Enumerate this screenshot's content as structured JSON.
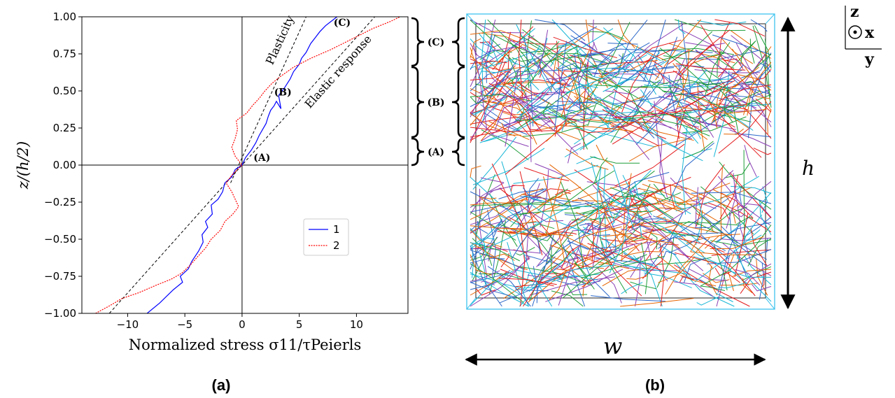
{
  "chart_data": {
    "type": "line",
    "xlabel": "Normalized stress σ11/τPeierls",
    "ylabel": "z/(h/2)",
    "xlim": [
      -14,
      14.5
    ],
    "ylim": [
      -1.0,
      1.0
    ],
    "xticks": [
      "−10",
      "−5",
      "0",
      "5",
      "10"
    ],
    "xtick_values": [
      -10,
      -5,
      0,
      5,
      10
    ],
    "yticks": [
      "−1.00",
      "−0.75",
      "−0.50",
      "−0.25",
      "0.00",
      "0.25",
      "0.50",
      "0.75",
      "1.00"
    ],
    "ytick_values": [
      -1.0,
      -0.75,
      -0.5,
      -0.25,
      0.0,
      0.25,
      0.5,
      0.75,
      1.0
    ],
    "legend_position": "center-right",
    "series": [
      {
        "name": "1",
        "color": "#0000ff",
        "style": "solid",
        "points": [
          [
            -8.3,
            -1.0
          ],
          [
            -7.2,
            -0.93
          ],
          [
            -6.0,
            -0.84
          ],
          [
            -5.2,
            -0.79
          ],
          [
            -5.4,
            -0.75
          ],
          [
            -4.7,
            -0.7
          ],
          [
            -4.4,
            -0.65
          ],
          [
            -3.8,
            -0.58
          ],
          [
            -3.4,
            -0.52
          ],
          [
            -3.5,
            -0.47
          ],
          [
            -3.0,
            -0.42
          ],
          [
            -3.2,
            -0.38
          ],
          [
            -2.6,
            -0.33
          ],
          [
            -2.7,
            -0.27
          ],
          [
            -2.1,
            -0.23
          ],
          [
            -1.7,
            -0.18
          ],
          [
            -1.5,
            -0.12
          ],
          [
            -0.9,
            -0.08
          ],
          [
            -0.6,
            -0.03
          ],
          [
            0.0,
            0.0
          ],
          [
            0.3,
            0.05
          ],
          [
            0.8,
            0.1
          ],
          [
            1.2,
            0.15
          ],
          [
            1.5,
            0.2
          ],
          [
            1.8,
            0.24
          ],
          [
            2.1,
            0.28
          ],
          [
            2.3,
            0.33
          ],
          [
            2.5,
            0.37
          ],
          [
            2.8,
            0.4
          ],
          [
            3.0,
            0.43
          ],
          [
            3.4,
            0.38
          ],
          [
            3.2,
            0.47
          ],
          [
            3.7,
            0.52
          ],
          [
            4.2,
            0.58
          ],
          [
            4.5,
            0.63
          ],
          [
            5.0,
            0.68
          ],
          [
            5.2,
            0.72
          ],
          [
            5.6,
            0.76
          ],
          [
            6.0,
            0.82
          ],
          [
            6.4,
            0.86
          ],
          [
            6.8,
            0.9
          ],
          [
            7.3,
            0.94
          ],
          [
            7.8,
            0.97
          ],
          [
            8.3,
            1.0
          ]
        ]
      },
      {
        "name": "2",
        "color": "#ff0000",
        "style": "dotted",
        "points": [
          [
            -12.8,
            -1.0
          ],
          [
            -11.6,
            -0.95
          ],
          [
            -10.5,
            -0.9
          ],
          [
            -9.0,
            -0.86
          ],
          [
            -7.5,
            -0.81
          ],
          [
            -6.2,
            -0.77
          ],
          [
            -5.3,
            -0.73
          ],
          [
            -4.6,
            -0.68
          ],
          [
            -3.9,
            -0.62
          ],
          [
            -3.2,
            -0.56
          ],
          [
            -2.7,
            -0.5
          ],
          [
            -1.9,
            -0.44
          ],
          [
            -1.5,
            -0.38
          ],
          [
            -0.8,
            -0.33
          ],
          [
            -0.3,
            -0.28
          ],
          [
            -0.6,
            -0.23
          ],
          [
            -0.9,
            -0.18
          ],
          [
            -1.4,
            -0.12
          ],
          [
            -0.8,
            -0.06
          ],
          [
            0.0,
            0.0
          ],
          [
            -0.6,
            0.06
          ],
          [
            -0.9,
            0.12
          ],
          [
            -0.6,
            0.18
          ],
          [
            -0.4,
            0.24
          ],
          [
            -0.5,
            0.3
          ],
          [
            0.4,
            0.35
          ],
          [
            0.9,
            0.4
          ],
          [
            1.5,
            0.45
          ],
          [
            2.0,
            0.5
          ],
          [
            2.6,
            0.55
          ],
          [
            3.4,
            0.6
          ],
          [
            4.5,
            0.66
          ],
          [
            6.0,
            0.72
          ],
          [
            7.8,
            0.78
          ],
          [
            9.6,
            0.85
          ],
          [
            11.4,
            0.92
          ],
          [
            13.0,
            0.97
          ],
          [
            13.8,
            1.0
          ]
        ]
      }
    ],
    "reference_lines": [
      {
        "label": "Plasticity",
        "points": [
          [
            -1.0,
            -0.12
          ],
          [
            5.6,
            1.0
          ]
        ],
        "style": "dashed"
      },
      {
        "label": "Elastic response",
        "points": [
          [
            -11.6,
            -1.0
          ],
          [
            11.6,
            1.0
          ]
        ],
        "style": "dashed"
      }
    ],
    "annotations": [
      {
        "text": "(A)",
        "x": 1.0,
        "y": 0.02
      },
      {
        "text": "(B)",
        "x": 2.8,
        "y": 0.46
      },
      {
        "text": "(C)",
        "x": 8.0,
        "y": 0.93
      }
    ]
  },
  "brace_labels": [
    "(C)",
    "(B)",
    "(A)"
  ],
  "caption_a": "(a)",
  "caption_b": "(b)",
  "dim_h": "h",
  "dim_w": "w",
  "axes": {
    "z": "z",
    "x": "x",
    "y": "y"
  },
  "colors": {
    "box": "#3ec3ee",
    "dislocations": [
      "#e41a1c",
      "#1f9e3a",
      "#2b67c9",
      "#16b6d6",
      "#8a3fb5",
      "#e66400"
    ]
  }
}
